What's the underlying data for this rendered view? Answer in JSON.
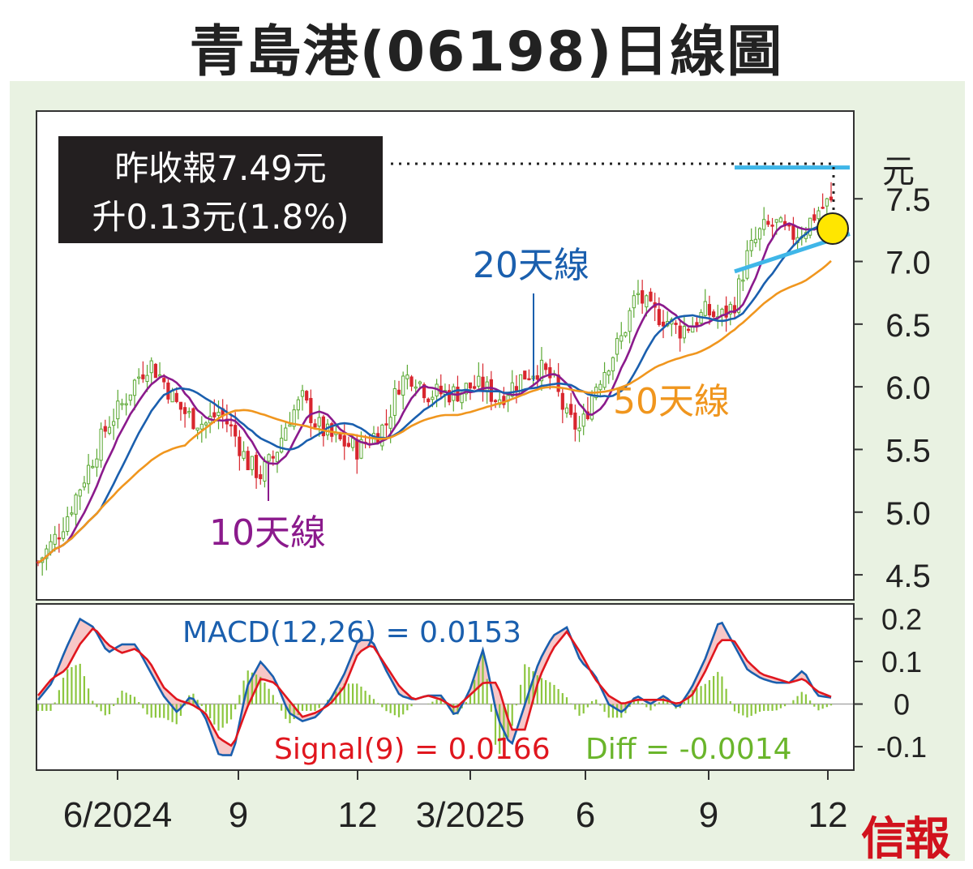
{
  "title": "青島港(06198)日線圖",
  "logo_text": "信報",
  "info_box": {
    "line1": "昨收報7.49元",
    "line2": "升0.13元(1.8%)"
  },
  "colors": {
    "candle_up": "#5aa832",
    "candle_down": "#d8262e",
    "ma10": "#8b1a8c",
    "ma20": "#1a5fae",
    "ma50": "#f0961e",
    "channel": "#3fb6e8",
    "macd": "#1a5fae",
    "signal": "#e0161e",
    "hist": "#8cc63f",
    "fill": "#f4b4b4",
    "highlight": "#ffe600"
  },
  "chart_data": [
    {
      "type": "candlestick",
      "title": "青島港(06198)日線圖",
      "unit": "元",
      "y_ticks": [
        "7.5",
        "7.0",
        "6.5",
        "6.0",
        "5.5",
        "5.0",
        "4.5"
      ],
      "ylim": [
        4.3,
        8.2
      ],
      "x_ticks": [
        "6/2024",
        "9",
        "12",
        "3/2025",
        "6",
        "9",
        "12"
      ],
      "series": [
        {
          "name": "10天線",
          "label": "10天線"
        },
        {
          "name": "20天線",
          "label": "20天線"
        },
        {
          "name": "50天線",
          "label": "50天線"
        }
      ],
      "last_close": 7.49,
      "close": [
        4.6,
        4.75,
        4.95,
        5.2,
        5.45,
        5.7,
        5.85,
        6.05,
        6.2,
        6.05,
        5.85,
        5.75,
        5.7,
        5.8,
        5.65,
        5.4,
        5.3,
        5.45,
        5.75,
        5.9,
        5.7,
        5.6,
        5.55,
        5.5,
        5.6,
        5.7,
        6.05,
        6.1,
        5.95,
        5.95,
        5.95,
        6.0,
        6.0,
        5.9,
        6.0,
        6.1,
        6.15,
        6.05,
        5.75,
        5.65,
        6.0,
        6.2,
        6.4,
        6.75,
        6.6,
        6.55,
        6.45,
        6.5,
        6.6,
        6.55,
        6.65,
        7.05,
        7.25,
        7.3,
        7.2,
        7.25,
        7.4,
        7.49
      ]
    },
    {
      "type": "line",
      "indicator": "MACD",
      "labels": {
        "macd": "MACD(12,26) = 0.0153",
        "signal": "Signal(9) = 0.0166",
        "diff": "Diff = -0.0014"
      },
      "y_ticks": [
        "0.2",
        "0.1",
        "0",
        "-0.1"
      ],
      "ylim": [
        -0.155,
        0.235
      ],
      "macd": [
        0.01,
        0.05,
        0.13,
        0.2,
        0.18,
        0.12,
        0.14,
        0.14,
        0.08,
        0.02,
        -0.02,
        0.02,
        -0.03,
        -0.12,
        -0.12,
        0.04,
        0.1,
        0.06,
        -0.02,
        -0.04,
        -0.03,
        0.01,
        0.07,
        0.15,
        0.15,
        0.08,
        0.02,
        0.01,
        0.02,
        0.02,
        -0.03,
        0.03,
        0.13,
        -0.03,
        -0.1,
        0.0,
        0.1,
        0.16,
        0.18,
        0.1,
        0.07,
        0.0,
        -0.02,
        0.02,
        0.0,
        0.02,
        -0.01,
        0.04,
        0.11,
        0.2,
        0.14,
        0.08,
        0.06,
        0.05,
        0.05,
        0.08,
        0.02,
        0.015
      ],
      "signal": [
        0.02,
        0.06,
        0.08,
        0.14,
        0.18,
        0.14,
        0.12,
        0.13,
        0.1,
        0.04,
        0.01,
        0.0,
        -0.02,
        -0.08,
        -0.1,
        -0.01,
        0.06,
        0.05,
        0.01,
        -0.03,
        -0.02,
        0.0,
        0.04,
        0.12,
        0.14,
        0.09,
        0.04,
        0.01,
        0.02,
        0.01,
        -0.01,
        0.02,
        0.05,
        0.05,
        -0.06,
        -0.06,
        0.06,
        0.13,
        0.17,
        0.12,
        0.06,
        0.02,
        0.0,
        0.01,
        0.01,
        0.01,
        0.0,
        0.02,
        0.08,
        0.15,
        0.15,
        0.1,
        0.07,
        0.06,
        0.05,
        0.06,
        0.03,
        0.017
      ]
    }
  ]
}
